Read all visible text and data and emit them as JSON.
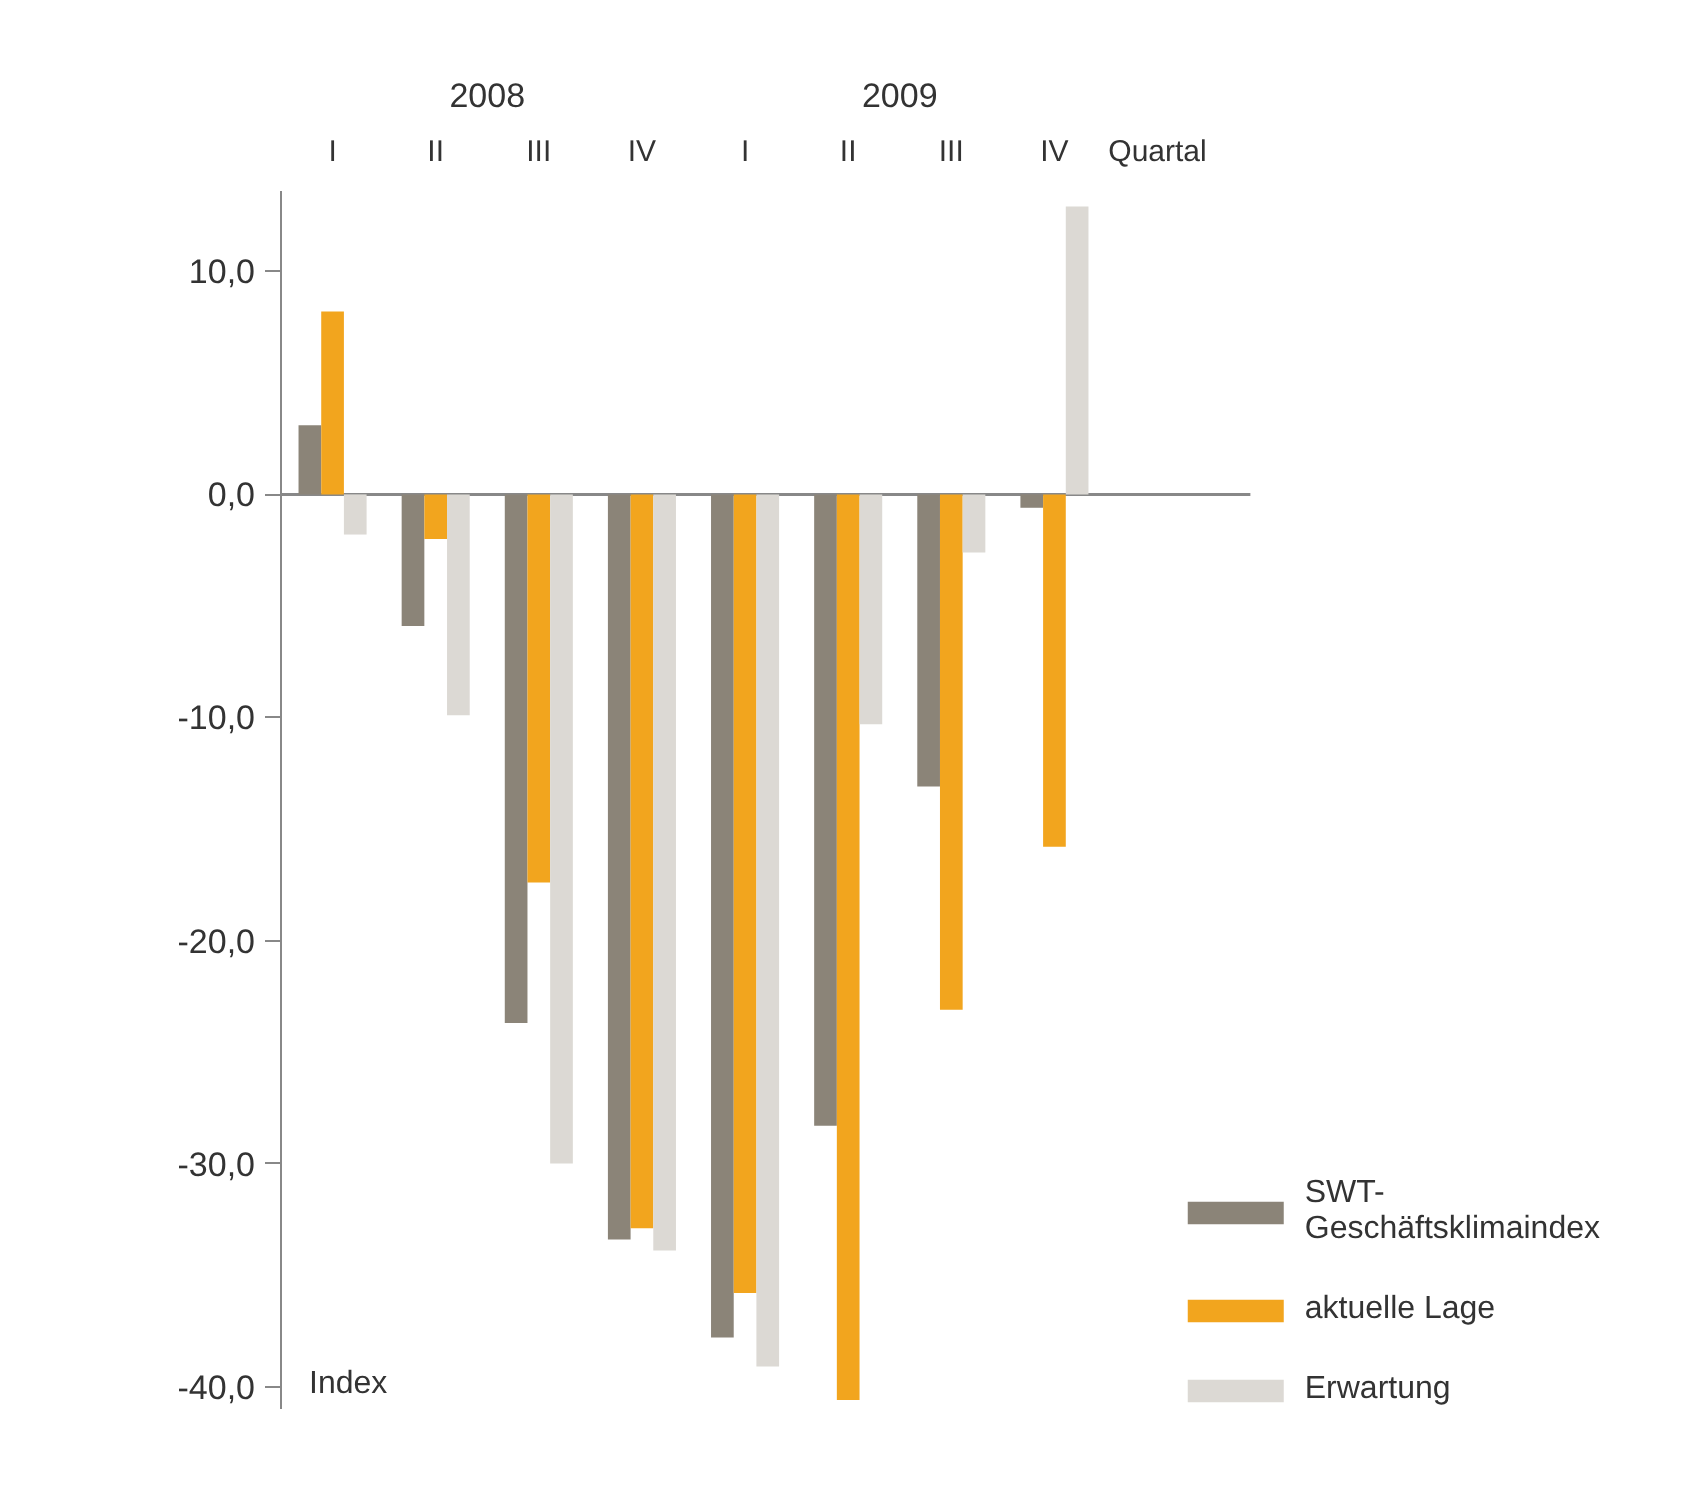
{
  "chart_data": {
    "type": "bar",
    "xlabel": "Quartal",
    "ylabel": "Index",
    "categories": [
      "I",
      "II",
      "III",
      "IV",
      "I",
      "II",
      "III",
      "IV"
    ],
    "annotations": [
      "2008",
      "2009"
    ],
    "series": [
      {
        "name": "SWT-Geschäftsklimaindex",
        "color": "#8b8478",
        "values": [
          3.1,
          -5.9,
          -23.7,
          -33.4,
          -37.8,
          -28.3,
          -13.1,
          -0.6
        ]
      },
      {
        "name": "aktuelle Lage",
        "color": "#f2a51e",
        "values": [
          8.2,
          -2.0,
          -17.4,
          -32.9,
          -35.8,
          -40.6,
          -23.1,
          -15.8
        ]
      },
      {
        "name": "Erwartung",
        "color": "#dcd9d4",
        "values": [
          -1.8,
          -9.9,
          -30.0,
          -33.9,
          -39.1,
          -10.3,
          -2.6,
          12.9
        ]
      }
    ],
    "ylim": [
      -41,
      13.6
    ],
    "yticks": [
      {
        "value": 10,
        "label": "10,0"
      },
      {
        "value": 0,
        "label": "0,0"
      },
      {
        "value": -10,
        "label": "-10,0"
      },
      {
        "value": -20,
        "label": "-20,0"
      },
      {
        "value": -30,
        "label": "-30,0"
      },
      {
        "value": -40,
        "label": "-40,0"
      }
    ],
    "ref_lines": [
      {
        "axis": "y",
        "value": 0,
        "color": "#888888"
      }
    ],
    "legend": "bottom right",
    "grid": false
  }
}
